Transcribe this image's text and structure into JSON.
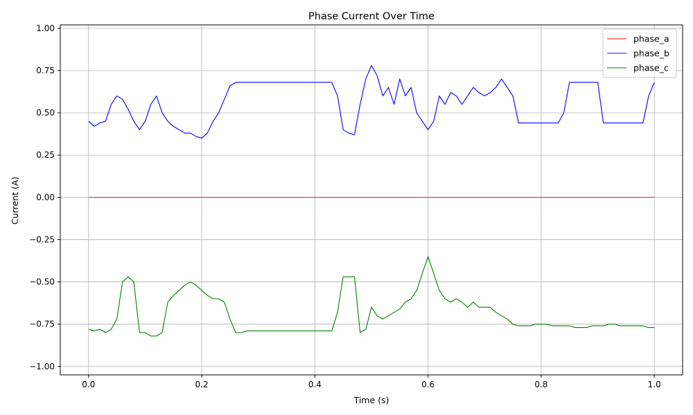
{
  "chart_data": {
    "type": "line",
    "title": "Phase Current Over Time",
    "xlabel": "Time (s)",
    "ylabel": "Current (A)",
    "xlim": [
      -0.05,
      1.05
    ],
    "ylim": [
      -1.05,
      1.02
    ],
    "xticks": [
      0.0,
      0.2,
      0.4,
      0.6,
      0.8,
      1.0
    ],
    "xtick_labels": [
      "0.0",
      "0.2",
      "0.4",
      "0.6",
      "0.8",
      "1.0"
    ],
    "yticks": [
      -1.0,
      -0.75,
      -0.5,
      -0.25,
      0.0,
      0.25,
      0.5,
      0.75,
      1.0
    ],
    "ytick_labels": [
      "−1.00",
      "−0.75",
      "−0.50",
      "−0.25",
      "0.00",
      "0.25",
      "0.50",
      "0.75",
      "1.00"
    ],
    "grid": true,
    "legend_position": "top-right",
    "series": [
      {
        "name": "phase_a",
        "color": "#ff0000",
        "x": [
          0.0,
          1.0
        ],
        "y": [
          0.0,
          0.0
        ]
      },
      {
        "name": "phase_b",
        "color": "#0000ff",
        "x": [
          0.0,
          0.01,
          0.02,
          0.03,
          0.04,
          0.05,
          0.06,
          0.07,
          0.08,
          0.09,
          0.1,
          0.11,
          0.12,
          0.13,
          0.14,
          0.15,
          0.16,
          0.17,
          0.18,
          0.19,
          0.2,
          0.21,
          0.22,
          0.23,
          0.24,
          0.25,
          0.26,
          0.27,
          0.28,
          0.29,
          0.3,
          0.31,
          0.32,
          0.33,
          0.34,
          0.35,
          0.36,
          0.37,
          0.38,
          0.39,
          0.4,
          0.41,
          0.42,
          0.43,
          0.44,
          0.45,
          0.46,
          0.47,
          0.48,
          0.49,
          0.5,
          0.51,
          0.52,
          0.53,
          0.54,
          0.55,
          0.56,
          0.57,
          0.58,
          0.59,
          0.6,
          0.61,
          0.62,
          0.63,
          0.64,
          0.65,
          0.66,
          0.67,
          0.68,
          0.69,
          0.7,
          0.71,
          0.72,
          0.73,
          0.74,
          0.75,
          0.76,
          0.77,
          0.78,
          0.79,
          0.8,
          0.81,
          0.82,
          0.83,
          0.84,
          0.85,
          0.86,
          0.87,
          0.88,
          0.89,
          0.9,
          0.91,
          0.92,
          0.93,
          0.94,
          0.95,
          0.96,
          0.97,
          0.98,
          0.99,
          1.0
        ],
        "y": [
          0.45,
          0.42,
          0.44,
          0.45,
          0.55,
          0.6,
          0.58,
          0.52,
          0.45,
          0.4,
          0.45,
          0.55,
          0.6,
          0.5,
          0.45,
          0.42,
          0.4,
          0.38,
          0.38,
          0.36,
          0.35,
          0.38,
          0.45,
          0.5,
          0.58,
          0.66,
          0.68,
          0.68,
          0.68,
          0.68,
          0.68,
          0.68,
          0.68,
          0.68,
          0.68,
          0.68,
          0.68,
          0.68,
          0.68,
          0.68,
          0.68,
          0.68,
          0.68,
          0.68,
          0.6,
          0.4,
          0.38,
          0.37,
          0.55,
          0.7,
          0.78,
          0.72,
          0.6,
          0.65,
          0.55,
          0.7,
          0.6,
          0.65,
          0.5,
          0.45,
          0.4,
          0.45,
          0.6,
          0.55,
          0.62,
          0.6,
          0.55,
          0.6,
          0.65,
          0.62,
          0.6,
          0.62,
          0.65,
          0.7,
          0.65,
          0.6,
          0.44,
          0.44,
          0.44,
          0.44,
          0.44,
          0.44,
          0.44,
          0.44,
          0.5,
          0.68,
          0.68,
          0.68,
          0.68,
          0.68,
          0.68,
          0.44,
          0.44,
          0.44,
          0.44,
          0.44,
          0.44,
          0.44,
          0.44,
          0.6,
          0.68
        ]
      },
      {
        "name": "phase_c",
        "color": "#008000",
        "x": [
          0.0,
          0.01,
          0.02,
          0.03,
          0.04,
          0.05,
          0.06,
          0.07,
          0.08,
          0.09,
          0.1,
          0.11,
          0.12,
          0.13,
          0.14,
          0.15,
          0.16,
          0.17,
          0.18,
          0.19,
          0.2,
          0.21,
          0.22,
          0.23,
          0.24,
          0.25,
          0.26,
          0.27,
          0.28,
          0.29,
          0.3,
          0.31,
          0.32,
          0.33,
          0.34,
          0.35,
          0.36,
          0.37,
          0.38,
          0.39,
          0.4,
          0.41,
          0.42,
          0.43,
          0.44,
          0.45,
          0.46,
          0.47,
          0.48,
          0.49,
          0.5,
          0.51,
          0.52,
          0.53,
          0.54,
          0.55,
          0.56,
          0.57,
          0.58,
          0.59,
          0.6,
          0.61,
          0.62,
          0.63,
          0.64,
          0.65,
          0.66,
          0.67,
          0.68,
          0.69,
          0.7,
          0.71,
          0.72,
          0.73,
          0.74,
          0.75,
          0.76,
          0.77,
          0.78,
          0.79,
          0.8,
          0.81,
          0.82,
          0.83,
          0.84,
          0.85,
          0.86,
          0.87,
          0.88,
          0.89,
          0.9,
          0.91,
          0.92,
          0.93,
          0.94,
          0.95,
          0.96,
          0.97,
          0.98,
          0.99,
          1.0
        ],
        "y": [
          -0.78,
          -0.79,
          -0.78,
          -0.8,
          -0.78,
          -0.72,
          -0.5,
          -0.47,
          -0.5,
          -0.8,
          -0.8,
          -0.82,
          -0.82,
          -0.8,
          -0.62,
          -0.58,
          -0.55,
          -0.52,
          -0.5,
          -0.52,
          -0.55,
          -0.58,
          -0.6,
          -0.6,
          -0.62,
          -0.72,
          -0.8,
          -0.8,
          -0.79,
          -0.79,
          -0.79,
          -0.79,
          -0.79,
          -0.79,
          -0.79,
          -0.79,
          -0.79,
          -0.79,
          -0.79,
          -0.79,
          -0.79,
          -0.79,
          -0.79,
          -0.79,
          -0.68,
          -0.47,
          -0.47,
          -0.47,
          -0.8,
          -0.78,
          -0.65,
          -0.7,
          -0.72,
          -0.7,
          -0.68,
          -0.66,
          -0.62,
          -0.6,
          -0.55,
          -0.45,
          -0.35,
          -0.45,
          -0.55,
          -0.6,
          -0.62,
          -0.6,
          -0.62,
          -0.65,
          -0.62,
          -0.65,
          -0.65,
          -0.65,
          -0.68,
          -0.7,
          -0.72,
          -0.75,
          -0.76,
          -0.76,
          -0.76,
          -0.75,
          -0.75,
          -0.75,
          -0.76,
          -0.76,
          -0.76,
          -0.76,
          -0.77,
          -0.77,
          -0.77,
          -0.76,
          -0.76,
          -0.76,
          -0.75,
          -0.75,
          -0.76,
          -0.76,
          -0.76,
          -0.76,
          -0.76,
          -0.77,
          -0.77
        ]
      }
    ]
  }
}
